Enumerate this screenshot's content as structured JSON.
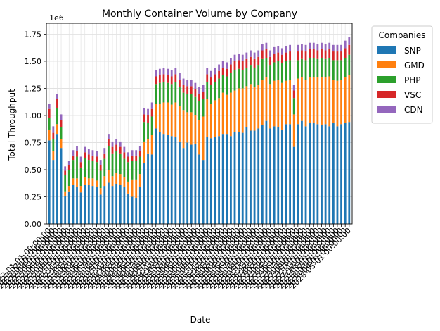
{
  "chart_data": {
    "type": "bar",
    "stacked": true,
    "title": "Monthly Container Volume by Company",
    "xlabel": "Date",
    "ylabel": "Total Throughput",
    "y_offset_label": "1e6",
    "ylim": [
      0,
      1850000
    ],
    "y_ticks": [
      0,
      250000,
      500000,
      750000,
      1000000,
      1250000,
      1500000,
      1750000
    ],
    "y_tick_labels": [
      "0.00",
      "0.25",
      "0.50",
      "0.75",
      "1.00",
      "1.25",
      "1.50",
      "1.75"
    ],
    "grid": true,
    "legend": {
      "title": "Companies",
      "placement": "outside right, top"
    },
    "categories": [
      "2022-01-01 00:00:00",
      "2022-02-01 00:00:00",
      "2022-03-01 00:00:00",
      "2022-04-01 00:00:00",
      "2022-05-01 00:00:00",
      "2022-06-01 00:00:00",
      "2022-07-01 00:00:00",
      "2022-08-01 00:00:00",
      "2022-09-01 00:00:00",
      "2022-10-01 00:00:00",
      "2022-11-01 00:00:00",
      "2022-12-01 00:00:00",
      "2023-01-01 00:00:00",
      "2023-02-01 00:00:00",
      "2023-03-01 00:00:00",
      "2023-04-01 00:00:00",
      "2023-05-01 00:00:00",
      "2023-06-01 00:00:00",
      "2023-07-01 00:00:00",
      "2023-08-01 00:00:00",
      "2023-09-01 00:00:00",
      "2023-10-01 00:00:00",
      "2023-11-01 00:00:00",
      "2023-12-01 00:00:00",
      "2024-01-01 00:00:00",
      "2024-02-01 00:00:00",
      "2024-03-01 00:00:00",
      "2024-04-01 00:00:00",
      "2024-05-01 00:00:00",
      "2024-06-01 00:00:00",
      "2024-07-01 00:00:00",
      "2024-08-01 00:00:00",
      "2024-09-01 00:00:00",
      "2024-10-01 00:00:00",
      "2024-11-01 00:00:00",
      "2024-12-01 00:00:00",
      "2025-01-01 00:00:00",
      "2025-02-01 00:00:00",
      "2025-03-01 00:00:00",
      "2025-04-01 00:00:00",
      "2025-05-01 00:00:00",
      "2025-06-01 00:00:00",
      "2025-07-01 00:00:00",
      "2025-08-01 00:00:00",
      "2025-09-01 00:00:00",
      "2025-10-01 00:00:00",
      "2025-11-01 00:00:00",
      "2025-12-01 00:00:00",
      "2026-01-01 00:00:00",
      "2026-02-01 00:00:00",
      "2026-03-01 00:00:00",
      "2026-04-01 00:00:00",
      "2026-05-01 00:00:00",
      "2026-06-01 00:00:00",
      "2026-07-01 00:00:00",
      "2026-08-01 00:00:00",
      "2026-09-01 00:00:00",
      "2026-10-01 00:00:00",
      "2026-11-01 00:00:00",
      "2026-12-01 00:00:00",
      "2027-01-01 00:00:00",
      "2027-02-01 00:00:00",
      "2027-03-01 00:00:00",
      "2027-04-01 00:00:00",
      "2027-05-01 00:00:00",
      "2027-06-01 00:00:00",
      "2027-07-01 00:00:00",
      "2027-08-01 00:00:00",
      "2027-09-01 00:00:00",
      "2027-10-01 00:00:00",
      "2027-11-01 00:00:00",
      "2027-12-01 00:00:00",
      "2028-01-01 00:00:00",
      "2028-02-01 00:00:00",
      "2028-03-01 00:00:00",
      "2028-04-01 00:00:00",
      "2028-05-01 00:00:00"
    ],
    "series": [
      {
        "name": "SNP",
        "color": "#1f77b4",
        "values": [
          770000,
          590000,
          830000,
          700000,
          260000,
          300000,
          360000,
          340000,
          290000,
          360000,
          360000,
          350000,
          340000,
          270000,
          350000,
          380000,
          350000,
          370000,
          360000,
          340000,
          280000,
          250000,
          240000,
          340000,
          560000,
          650000,
          640000,
          880000,
          850000,
          830000,
          820000,
          810000,
          800000,
          760000,
          700000,
          750000,
          730000,
          740000,
          640000,
          590000,
          800000,
          790000,
          800000,
          810000,
          830000,
          830000,
          810000,
          850000,
          850000,
          840000,
          890000,
          860000,
          860000,
          880000,
          910000,
          950000,
          880000,
          900000,
          890000,
          870000,
          920000,
          920000,
          710000,
          920000,
          950000,
          900000,
          930000,
          930000,
          920000,
          910000,
          920000,
          900000,
          930000,
          900000,
          920000,
          930000,
          940000
        ]
      },
      {
        "name": "GMD",
        "color": "#ff7f0e",
        "values": [
          100000,
          80000,
          90000,
          80000,
          40000,
          50000,
          60000,
          80000,
          60000,
          70000,
          60000,
          70000,
          60000,
          60000,
          90000,
          120000,
          90000,
          100000,
          100000,
          90000,
          110000,
          160000,
          170000,
          120000,
          200000,
          130000,
          180000,
          230000,
          260000,
          290000,
          300000,
          290000,
          320000,
          330000,
          350000,
          280000,
          300000,
          260000,
          320000,
          400000,
          350000,
          320000,
          340000,
          350000,
          380000,
          360000,
          400000,
          380000,
          400000,
          410000,
          380000,
          430000,
          400000,
          400000,
          420000,
          400000,
          410000,
          420000,
          440000,
          430000,
          400000,
          410000,
          300000,
          420000,
          400000,
          430000,
          420000,
          420000,
          430000,
          440000,
          430000,
          460000,
          400000,
          420000,
          410000,
          420000,
          430000
        ]
      },
      {
        "name": "PHP",
        "color": "#2ca02c",
        "values": [
          110000,
          110000,
          150000,
          110000,
          150000,
          150000,
          170000,
          200000,
          170000,
          180000,
          170000,
          160000,
          170000,
          160000,
          160000,
          220000,
          210000,
          200000,
          190000,
          170000,
          180000,
          170000,
          170000,
          160000,
          180000,
          150000,
          170000,
          180000,
          190000,
          190000,
          180000,
          190000,
          190000,
          170000,
          160000,
          170000,
          170000,
          170000,
          170000,
          160000,
          160000,
          170000,
          170000,
          180000,
          160000,
          170000,
          180000,
          190000,
          180000,
          170000,
          170000,
          170000,
          180000,
          180000,
          190000,
          180000,
          170000,
          170000,
          170000,
          180000,
          180000,
          180000,
          150000,
          170000,
          170000,
          180000,
          180000,
          180000,
          170000,
          180000,
          170000,
          170000,
          180000,
          190000,
          180000,
          180000,
          190000
        ]
      },
      {
        "name": "VSC",
        "color": "#d62728",
        "values": [
          80000,
          60000,
          80000,
          70000,
          40000,
          40000,
          40000,
          50000,
          50000,
          50000,
          50000,
          50000,
          50000,
          50000,
          50000,
          60000,
          60000,
          60000,
          60000,
          60000,
          50000,
          50000,
          50000,
          50000,
          70000,
          70000,
          70000,
          70000,
          70000,
          70000,
          70000,
          70000,
          70000,
          70000,
          70000,
          70000,
          70000,
          70000,
          70000,
          70000,
          70000,
          70000,
          70000,
          70000,
          70000,
          70000,
          80000,
          80000,
          80000,
          80000,
          80000,
          80000,
          80000,
          80000,
          80000,
          80000,
          80000,
          80000,
          80000,
          80000,
          80000,
          80000,
          70000,
          80000,
          80000,
          80000,
          80000,
          80000,
          80000,
          80000,
          80000,
          80000,
          80000,
          80000,
          80000,
          90000,
          90000
        ]
      },
      {
        "name": "CDN",
        "color": "#9467bd",
        "values": [
          50000,
          60000,
          50000,
          50000,
          40000,
          40000,
          50000,
          50000,
          50000,
          50000,
          50000,
          50000,
          50000,
          50000,
          50000,
          50000,
          50000,
          50000,
          50000,
          50000,
          40000,
          50000,
          50000,
          50000,
          60000,
          60000,
          60000,
          60000,
          60000,
          60000,
          60000,
          60000,
          60000,
          60000,
          60000,
          60000,
          60000,
          60000,
          60000,
          60000,
          60000,
          60000,
          60000,
          60000,
          60000,
          60000,
          60000,
          60000,
          60000,
          60000,
          60000,
          60000,
          60000,
          60000,
          60000,
          60000,
          60000,
          60000,
          60000,
          60000,
          60000,
          60000,
          50000,
          60000,
          60000,
          60000,
          60000,
          60000,
          60000,
          60000,
          60000,
          60000,
          60000,
          60000,
          60000,
          70000,
          70000
        ]
      }
    ]
  }
}
